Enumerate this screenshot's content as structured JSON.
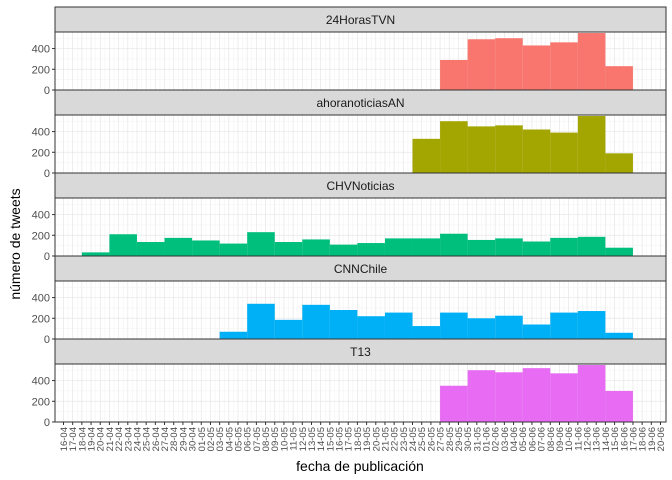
{
  "chart_data": {
    "type": "bar",
    "xlabel": "fecha de publicación",
    "ylabel": "número de tweets",
    "ylim": [
      0,
      560
    ],
    "yticks": [
      0,
      200,
      400
    ],
    "grid": true,
    "x_tick_labels": [
      "16-04",
      "17-04",
      "18-04",
      "19-04",
      "20-04",
      "21-04",
      "22-04",
      "23-04",
      "24-04",
      "25-04",
      "26-04",
      "27-04",
      "28-04",
      "29-04",
      "30-04",
      "01-05",
      "02-05",
      "03-05",
      "04-05",
      "05-05",
      "06-05",
      "07-05",
      "08-05",
      "09-05",
      "10-05",
      "11-05",
      "12-05",
      "13-05",
      "14-05",
      "15-05",
      "16-05",
      "17-05",
      "18-05",
      "19-05",
      "20-05",
      "21-05",
      "22-05",
      "23-05",
      "24-05",
      "25-05",
      "26-05",
      "27-05",
      "28-05",
      "29-05",
      "30-05",
      "31-05",
      "01-06",
      "02-06",
      "03-06",
      "04-06",
      "05-06",
      "06-06",
      "07-06",
      "08-06",
      "09-06",
      "10-06",
      "11-06",
      "12-06",
      "13-06",
      "14-06",
      "15-06",
      "16-06",
      "17-06",
      "18-06",
      "19-06",
      "20-06"
    ],
    "bin_width_days": 3,
    "colors": {
      "24HorasTVN": "#F8766D",
      "ahoranoticiasAN": "#A3A500",
      "CHVNoticias": "#00BF7D",
      "CNNChile": "#00B0F6",
      "T13": "#E76BF3"
    },
    "series": [
      {
        "name": "24HorasTVN",
        "bins": [
          {
            "start": "27-05",
            "value": 290
          },
          {
            "start": "30-05",
            "value": 490
          },
          {
            "start": "02-06",
            "value": 500
          },
          {
            "start": "05-06",
            "value": 430
          },
          {
            "start": "08-06",
            "value": 460
          },
          {
            "start": "11-06",
            "value": 550
          },
          {
            "start": "14-06",
            "value": 230
          }
        ]
      },
      {
        "name": "ahoranoticiasAN",
        "bins": [
          {
            "start": "24-05",
            "value": 330
          },
          {
            "start": "27-05",
            "value": 500
          },
          {
            "start": "30-05",
            "value": 450
          },
          {
            "start": "02-06",
            "value": 460
          },
          {
            "start": "05-06",
            "value": 420
          },
          {
            "start": "08-06",
            "value": 390
          },
          {
            "start": "11-06",
            "value": 550
          },
          {
            "start": "14-06",
            "value": 190
          }
        ]
      },
      {
        "name": "CHVNoticias",
        "bins": [
          {
            "start": "18-04",
            "value": 35
          },
          {
            "start": "21-04",
            "value": 210
          },
          {
            "start": "24-04",
            "value": 135
          },
          {
            "start": "27-04",
            "value": 175
          },
          {
            "start": "30-04",
            "value": 150
          },
          {
            "start": "03-05",
            "value": 120
          },
          {
            "start": "06-05",
            "value": 230
          },
          {
            "start": "09-05",
            "value": 135
          },
          {
            "start": "12-05",
            "value": 160
          },
          {
            "start": "15-05",
            "value": 110
          },
          {
            "start": "18-05",
            "value": 125
          },
          {
            "start": "21-05",
            "value": 170
          },
          {
            "start": "24-05",
            "value": 170
          },
          {
            "start": "27-05",
            "value": 215
          },
          {
            "start": "30-05",
            "value": 155
          },
          {
            "start": "02-06",
            "value": 170
          },
          {
            "start": "05-06",
            "value": 140
          },
          {
            "start": "08-06",
            "value": 175
          },
          {
            "start": "11-06",
            "value": 185
          },
          {
            "start": "14-06",
            "value": 80
          }
        ]
      },
      {
        "name": "CNNChile",
        "bins": [
          {
            "start": "03-05",
            "value": 70
          },
          {
            "start": "06-05",
            "value": 340
          },
          {
            "start": "09-05",
            "value": 185
          },
          {
            "start": "12-05",
            "value": 330
          },
          {
            "start": "15-05",
            "value": 280
          },
          {
            "start": "18-05",
            "value": 220
          },
          {
            "start": "21-05",
            "value": 255
          },
          {
            "start": "24-05",
            "value": 125
          },
          {
            "start": "27-05",
            "value": 255
          },
          {
            "start": "30-05",
            "value": 200
          },
          {
            "start": "02-06",
            "value": 225
          },
          {
            "start": "05-06",
            "value": 140
          },
          {
            "start": "08-06",
            "value": 255
          },
          {
            "start": "11-06",
            "value": 270
          },
          {
            "start": "14-06",
            "value": 60
          }
        ]
      },
      {
        "name": "T13",
        "bins": [
          {
            "start": "27-05",
            "value": 350
          },
          {
            "start": "30-05",
            "value": 500
          },
          {
            "start": "02-06",
            "value": 480
          },
          {
            "start": "05-06",
            "value": 520
          },
          {
            "start": "08-06",
            "value": 470
          },
          {
            "start": "11-06",
            "value": 550
          },
          {
            "start": "14-06",
            "value": 300
          }
        ]
      }
    ]
  }
}
